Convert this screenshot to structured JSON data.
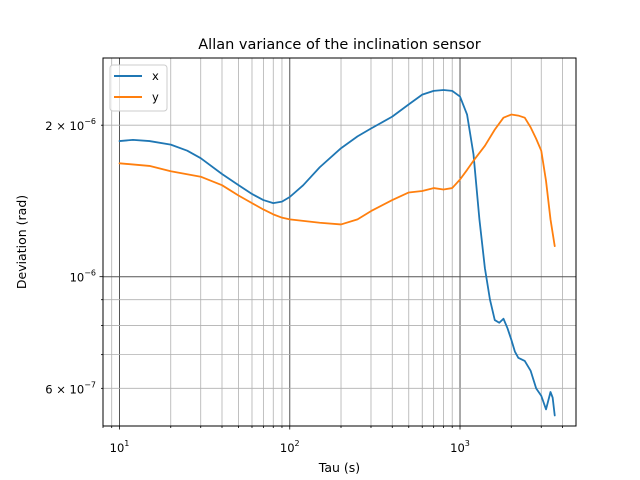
{
  "chart_data": {
    "type": "line",
    "title": "Allan variance of the inclination sensor",
    "xlabel": "Tau (s)",
    "ylabel": "Deviation (rad)",
    "xscale": "log",
    "yscale": "log",
    "xlim": [
      8,
      4800
    ],
    "ylim": [
      5.05e-07,
      2.72e-06
    ],
    "grid": true,
    "legend": {
      "position": "top-left",
      "entries": [
        "x",
        "y"
      ]
    },
    "x_ticks": [
      {
        "value": 10,
        "base": "10",
        "exp": "1"
      },
      {
        "value": 100,
        "base": "10",
        "exp": "2"
      },
      {
        "value": 1000,
        "base": "10",
        "exp": "3"
      }
    ],
    "y_ticks": [
      {
        "value": 6e-07,
        "mant": "6 × 10",
        "exp": "−7"
      },
      {
        "value": 1e-06,
        "mant": "10",
        "exp": "−6"
      },
      {
        "value": 2e-06,
        "mant": "2 × 10",
        "exp": "−6"
      }
    ],
    "series": [
      {
        "name": "x",
        "color": "#1f77b4",
        "x": [
          10,
          12,
          15,
          20,
          25,
          30,
          40,
          50,
          60,
          70,
          80,
          90,
          100,
          120,
          150,
          200,
          250,
          300,
          400,
          500,
          600,
          700,
          800,
          900,
          1000,
          1100,
          1200,
          1300,
          1400,
          1500,
          1600,
          1700,
          1800,
          1900,
          2000,
          2100,
          2200,
          2400,
          2600,
          2800,
          3000,
          3200,
          3400,
          3500,
          3600
        ],
        "y": [
          1.86e-06,
          1.87e-06,
          1.86e-06,
          1.83e-06,
          1.78e-06,
          1.72e-06,
          1.6e-06,
          1.52e-06,
          1.46e-06,
          1.42e-06,
          1.4e-06,
          1.41e-06,
          1.44e-06,
          1.52e-06,
          1.65e-06,
          1.8e-06,
          1.9e-06,
          1.97e-06,
          2.08e-06,
          2.2e-06,
          2.3e-06,
          2.34e-06,
          2.35e-06,
          2.34e-06,
          2.28e-06,
          2.1e-06,
          1.75e-06,
          1.3e-06,
          1.04e-06,
          9e-07,
          8.2e-07,
          8.1e-07,
          8.25e-07,
          7.9e-07,
          7.5e-07,
          7.1e-07,
          6.9e-07,
          6.8e-07,
          6.5e-07,
          6e-07,
          5.8e-07,
          5.45e-07,
          5.9e-07,
          5.75e-07,
          5.3e-07
        ]
      },
      {
        "name": "y",
        "color": "#ff7f0e",
        "x": [
          10,
          15,
          20,
          30,
          40,
          50,
          60,
          70,
          80,
          90,
          100,
          150,
          200,
          250,
          300,
          400,
          500,
          600,
          700,
          800,
          900,
          1000,
          1100,
          1200,
          1400,
          1600,
          1800,
          2000,
          2200,
          2400,
          2600,
          2800,
          3000,
          3200,
          3400,
          3600
        ],
        "y": [
          1.68e-06,
          1.66e-06,
          1.62e-06,
          1.58e-06,
          1.52e-06,
          1.45e-06,
          1.4e-06,
          1.36e-06,
          1.33e-06,
          1.31e-06,
          1.3e-06,
          1.28e-06,
          1.27e-06,
          1.3e-06,
          1.35e-06,
          1.42e-06,
          1.47e-06,
          1.48e-06,
          1.5e-06,
          1.49e-06,
          1.5e-06,
          1.56e-06,
          1.63e-06,
          1.7e-06,
          1.82e-06,
          1.96e-06,
          2.07e-06,
          2.1e-06,
          2.09e-06,
          2.07e-06,
          1.98e-06,
          1.88e-06,
          1.78e-06,
          1.55e-06,
          1.3e-06,
          1.15e-06
        ]
      }
    ]
  }
}
